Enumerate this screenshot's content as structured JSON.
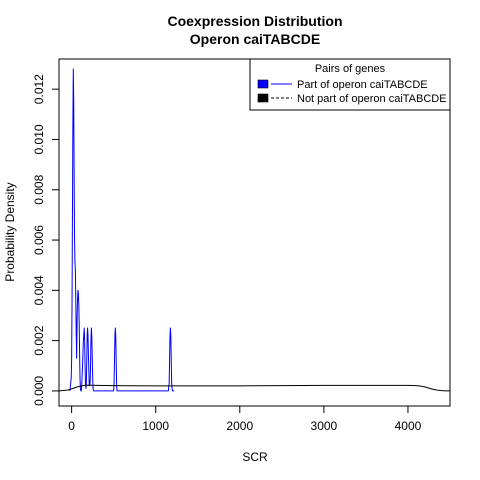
{
  "chart_data": {
    "type": "line",
    "title": "Coexpression Distribution",
    "subtitle": "Operon caiTABCDE",
    "xlabel": "SCR",
    "ylabel": "Probability Density",
    "xlim": [
      -150,
      4500
    ],
    "ylim": [
      -0.0006,
      0.0132
    ],
    "x_ticks": [
      0,
      1000,
      2000,
      3000,
      4000
    ],
    "x_tick_labels": [
      "0",
      "1000",
      "2000",
      "3000",
      "4000"
    ],
    "y_ticks": [
      0.0,
      0.002,
      0.004,
      0.006,
      0.008,
      0.01,
      0.012
    ],
    "y_tick_labels": [
      "0.000",
      "0.002",
      "0.004",
      "0.006",
      "0.008",
      "0.010",
      "0.012"
    ],
    "grid": false,
    "legend": {
      "title": "Pairs of genes",
      "position": "top-right",
      "entries": [
        {
          "label": "Part of operon caiTABCDE",
          "color": "#0000ff"
        },
        {
          "label": "Not part of operon caiTABCDE",
          "color": "#000000"
        }
      ]
    },
    "series": [
      {
        "name": "Part of operon caiTABCDE",
        "color": "#0000ff",
        "x": [
          -20,
          -5,
          0,
          5,
          10,
          15,
          20,
          25,
          30,
          35,
          40,
          45,
          50,
          55,
          60,
          65,
          70,
          75,
          80,
          85,
          90,
          95,
          100,
          105,
          110,
          115,
          120,
          130,
          140,
          150,
          155,
          160,
          165,
          170,
          175,
          180,
          185,
          190,
          195,
          200,
          210,
          220,
          225,
          230,
          235,
          240,
          245,
          250,
          255,
          260,
          270,
          300,
          400,
          500,
          505,
          510,
          515,
          520,
          525,
          530,
          535,
          540,
          545,
          550,
          560,
          600,
          800,
          1000,
          1150,
          1160,
          1165,
          1170,
          1175,
          1180,
          1185,
          1190,
          1195,
          1200,
          1210,
          1220
        ],
        "y": [
          0.0,
          0.0005,
          0.0012,
          0.0035,
          0.007,
          0.0105,
          0.0128,
          0.0115,
          0.0085,
          0.006,
          0.0051,
          0.0048,
          0.0035,
          0.0022,
          0.0013,
          0.0028,
          0.0036,
          0.004,
          0.0039,
          0.0035,
          0.0027,
          0.0015,
          0.0005,
          0.0001,
          0.0,
          0.0,
          0.0002,
          0.001,
          0.002,
          0.0025,
          0.002,
          0.001,
          0.0003,
          0.0001,
          0.0003,
          0.0012,
          0.0022,
          0.0025,
          0.0022,
          0.0014,
          0.0002,
          0.0003,
          0.001,
          0.002,
          0.0025,
          0.0022,
          0.0014,
          0.0006,
          0.0001,
          0.0,
          0.0,
          0.0,
          0.0,
          0.0,
          0.0003,
          0.0012,
          0.0022,
          0.0025,
          0.0022,
          0.0012,
          0.0003,
          0.0,
          0.0,
          0.0,
          0.0,
          0.0,
          0.0,
          0.0,
          0.0,
          0.0003,
          0.0012,
          0.0022,
          0.0025,
          0.0022,
          0.0012,
          0.0003,
          0.0001,
          0.0,
          0.0,
          0.0
        ]
      },
      {
        "name": "Not part of operon caiTABCDE",
        "color": "#000000",
        "x": [
          -150,
          -50,
          0,
          50,
          100,
          150,
          200,
          300,
          500,
          1000,
          1500,
          2000,
          2500,
          3000,
          3500,
          4000,
          4100,
          4150,
          4200,
          4250,
          4300,
          4350,
          4400,
          4450,
          4500
        ],
        "y": [
          0.0,
          3e-05,
          8e-05,
          0.00014,
          0.00019,
          0.00022,
          0.00023,
          0.00022,
          0.00021,
          0.0002,
          0.0002,
          0.0002,
          0.00021,
          0.00022,
          0.00022,
          0.00022,
          0.00021,
          0.00019,
          0.00016,
          0.00011,
          6e-05,
          3e-05,
          1e-05,
          0.0,
          0.0
        ]
      }
    ]
  }
}
